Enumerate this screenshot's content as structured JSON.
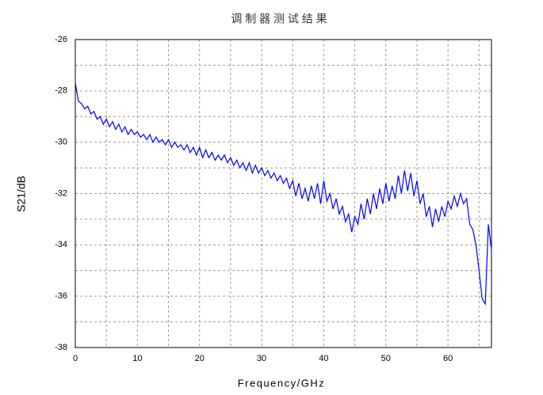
{
  "chart_data": {
    "type": "line",
    "title": "调 制 器 测 试 结 果",
    "x_label": "Frequency/GHz",
    "y_label": "S21/dB",
    "xlim": [
      0,
      67
    ],
    "ylim": [
      -38,
      -26
    ],
    "xticks": [
      0,
      10,
      20,
      30,
      40,
      50,
      60
    ],
    "yticks": [
      -38,
      -36,
      -34,
      -32,
      -30,
      -28,
      -26
    ],
    "x_minor_grid": [
      5,
      15,
      25,
      35,
      45,
      55,
      65
    ],
    "y_minor_grid": [
      -37,
      -35,
      -33,
      -31,
      -29,
      -27
    ],
    "grid": true,
    "x": [
      0,
      0.5,
      1,
      1.5,
      2,
      2.5,
      3,
      3.5,
      4,
      4.5,
      5,
      5.5,
      6,
      6.5,
      7,
      7.5,
      8,
      8.5,
      9,
      9.5,
      10,
      10.5,
      11,
      11.5,
      12,
      12.5,
      13,
      13.5,
      14,
      14.5,
      15,
      15.5,
      16,
      16.5,
      17,
      17.5,
      18,
      18.5,
      19,
      19.5,
      20,
      20.5,
      21,
      21.5,
      22,
      22.5,
      23,
      23.5,
      24,
      24.5,
      25,
      25.5,
      26,
      26.5,
      27,
      27.5,
      28,
      28.5,
      29,
      29.5,
      30,
      30.5,
      31,
      31.5,
      32,
      32.5,
      33,
      33.5,
      34,
      34.5,
      35,
      35.5,
      36,
      36.5,
      37,
      37.5,
      38,
      38.5,
      39,
      39.5,
      40,
      40.5,
      41,
      41.5,
      42,
      42.5,
      43,
      43.5,
      44,
      44.5,
      45,
      45.5,
      46,
      46.5,
      47,
      47.5,
      48,
      48.5,
      49,
      49.5,
      50,
      50.5,
      51,
      51.5,
      52,
      52.5,
      53,
      53.5,
      54,
      54.5,
      55,
      55.5,
      56,
      56.5,
      57,
      57.5,
      58,
      58.5,
      59,
      59.5,
      60,
      60.5,
      61,
      61.5,
      62,
      62.5,
      63,
      63.5,
      64,
      64.5,
      65,
      65.5,
      66,
      66.5,
      67
    ],
    "series": [
      {
        "color": "#0000ff",
        "values": [
          -27.7,
          -28.4,
          -28.5,
          -28.7,
          -28.6,
          -28.9,
          -28.8,
          -29.1,
          -29.0,
          -29.3,
          -29.1,
          -29.4,
          -29.2,
          -29.5,
          -29.3,
          -29.6,
          -29.4,
          -29.7,
          -29.5,
          -29.7,
          -29.6,
          -29.8,
          -29.7,
          -29.9,
          -29.7,
          -30.0,
          -29.8,
          -30.0,
          -29.9,
          -30.1,
          -29.9,
          -30.2,
          -30.0,
          -30.2,
          -30.1,
          -30.3,
          -30.1,
          -30.4,
          -30.2,
          -30.5,
          -30.2,
          -30.6,
          -30.3,
          -30.6,
          -30.4,
          -30.7,
          -30.5,
          -30.7,
          -30.5,
          -30.8,
          -30.6,
          -30.9,
          -30.7,
          -31.0,
          -30.8,
          -31.1,
          -30.8,
          -31.2,
          -30.9,
          -31.2,
          -31.0,
          -31.3,
          -31.1,
          -31.4,
          -31.2,
          -31.5,
          -31.3,
          -31.6,
          -31.4,
          -31.8,
          -31.5,
          -32.1,
          -31.6,
          -32.2,
          -31.8,
          -32.3,
          -31.7,
          -32.2,
          -31.6,
          -32.4,
          -31.5,
          -32.3,
          -32.0,
          -32.6,
          -32.2,
          -32.8,
          -32.5,
          -33.1,
          -32.8,
          -33.5,
          -32.9,
          -33.2,
          -32.4,
          -33.0,
          -32.2,
          -32.8,
          -32.0,
          -32.6,
          -31.8,
          -32.4,
          -31.6,
          -32.3,
          -31.7,
          -32.2,
          -31.3,
          -32.0,
          -31.1,
          -31.9,
          -31.2,
          -32.1,
          -31.5,
          -32.4,
          -32.0,
          -32.9,
          -32.5,
          -33.3,
          -32.6,
          -33.1,
          -32.5,
          -32.9,
          -32.3,
          -32.6,
          -32.1,
          -32.5,
          -32.0,
          -32.4,
          -32.2,
          -33.2,
          -33.4,
          -34.0,
          -35.0,
          -36.1,
          -36.3,
          -33.2,
          -34.2
        ]
      }
    ]
  }
}
